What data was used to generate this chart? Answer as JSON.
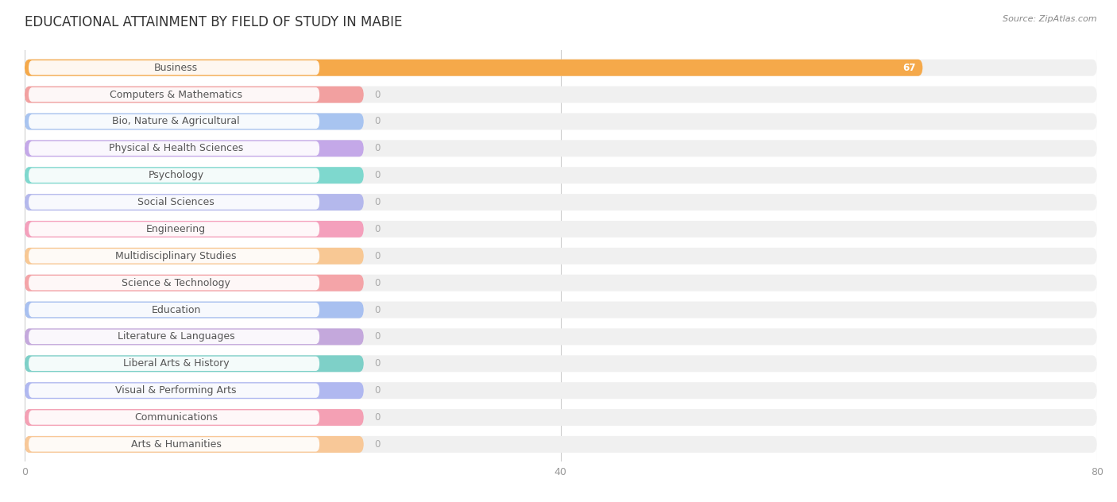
{
  "title": "EDUCATIONAL ATTAINMENT BY FIELD OF STUDY IN MABIE",
  "source": "Source: ZipAtlas.com",
  "categories": [
    "Business",
    "Computers & Mathematics",
    "Bio, Nature & Agricultural",
    "Physical & Health Sciences",
    "Psychology",
    "Social Sciences",
    "Engineering",
    "Multidisciplinary Studies",
    "Science & Technology",
    "Education",
    "Literature & Languages",
    "Liberal Arts & History",
    "Visual & Performing Arts",
    "Communications",
    "Arts & Humanities"
  ],
  "values": [
    67,
    0,
    0,
    0,
    0,
    0,
    0,
    0,
    0,
    0,
    0,
    0,
    0,
    0,
    0
  ],
  "bar_colors": [
    "#F5A94A",
    "#F2A0A0",
    "#A8C4F0",
    "#C4A8E8",
    "#7ED8CE",
    "#B4B8EC",
    "#F4A0BC",
    "#F8C894",
    "#F4A4A8",
    "#A8C0F0",
    "#C4A8DC",
    "#7ED0C8",
    "#B0B8F0",
    "#F4A0B4",
    "#F8C898"
  ],
  "xlim": [
    0,
    80
  ],
  "xticks": [
    0,
    40,
    80
  ],
  "background_color": "#ffffff",
  "row_bg_color": "#f0f0f0",
  "white_label_color": "#ffffff",
  "label_text_color": "#555555",
  "value_text_color": "#ffffff",
  "zero_text_color": "#aaaaaa",
  "title_fontsize": 12,
  "label_fontsize": 9,
  "value_fontsize": 8.5,
  "source_fontsize": 8
}
